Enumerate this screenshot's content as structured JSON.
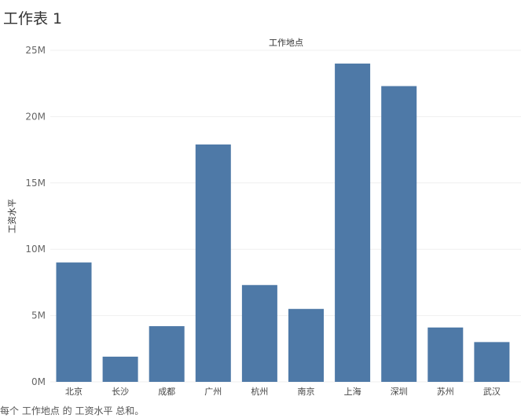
{
  "sheet": {
    "title": "工作表 1"
  },
  "caption": "每个 工作地点 的 工资水平 总和。",
  "colors": {
    "bar": "#4e79a7",
    "grid": "#efefef",
    "axis_text": "#666666"
  },
  "chart_data": {
    "type": "bar",
    "x_header": "工作地点",
    "ylabel": "工资水平",
    "categories": [
      "北京",
      "长沙",
      "成都",
      "广州",
      "杭州",
      "南京",
      "上海",
      "深圳",
      "苏州",
      "武汉"
    ],
    "values": [
      9000000,
      1900000,
      4200000,
      17900000,
      7300000,
      5500000,
      24000000,
      22300000,
      4100000,
      3000000
    ],
    "ylim": [
      0,
      25000000
    ],
    "yticks": [
      0,
      5000000,
      10000000,
      15000000,
      20000000,
      25000000
    ],
    "ytick_labels": [
      "0M",
      "5M",
      "10M",
      "15M",
      "20M",
      "25M"
    ],
    "grid": true
  }
}
